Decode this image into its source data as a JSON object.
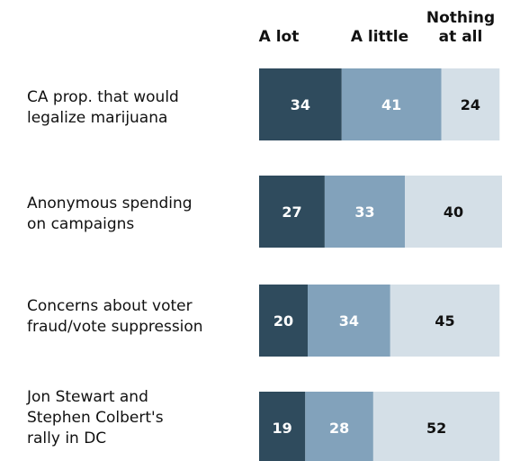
{
  "chart_data": {
    "type": "bar",
    "orientation": "horizontal",
    "stacked": true,
    "categories": [
      "CA prop. that would\nlegalize marijuana",
      "Anonymous spending\non campaigns",
      "Concerns about voter\nfraud/vote suppression",
      "Jon Stewart and\nStephen Colbert's\nrally in DC"
    ],
    "series": [
      {
        "name": "A lot",
        "values": [
          34,
          27,
          20,
          19
        ],
        "color": "#2f4b5d",
        "label_color": "#ffffff"
      },
      {
        "name": "A little",
        "values": [
          41,
          33,
          34,
          28
        ],
        "color": "#82a2bb",
        "label_color": "#ffffff"
      },
      {
        "name": "Nothing\nat all",
        "values": [
          24,
          40,
          45,
          52
        ],
        "color": "#d4dfe7",
        "label_color": "#111111"
      }
    ],
    "xlim": [
      0,
      100
    ],
    "grid": false,
    "legend": "top"
  }
}
